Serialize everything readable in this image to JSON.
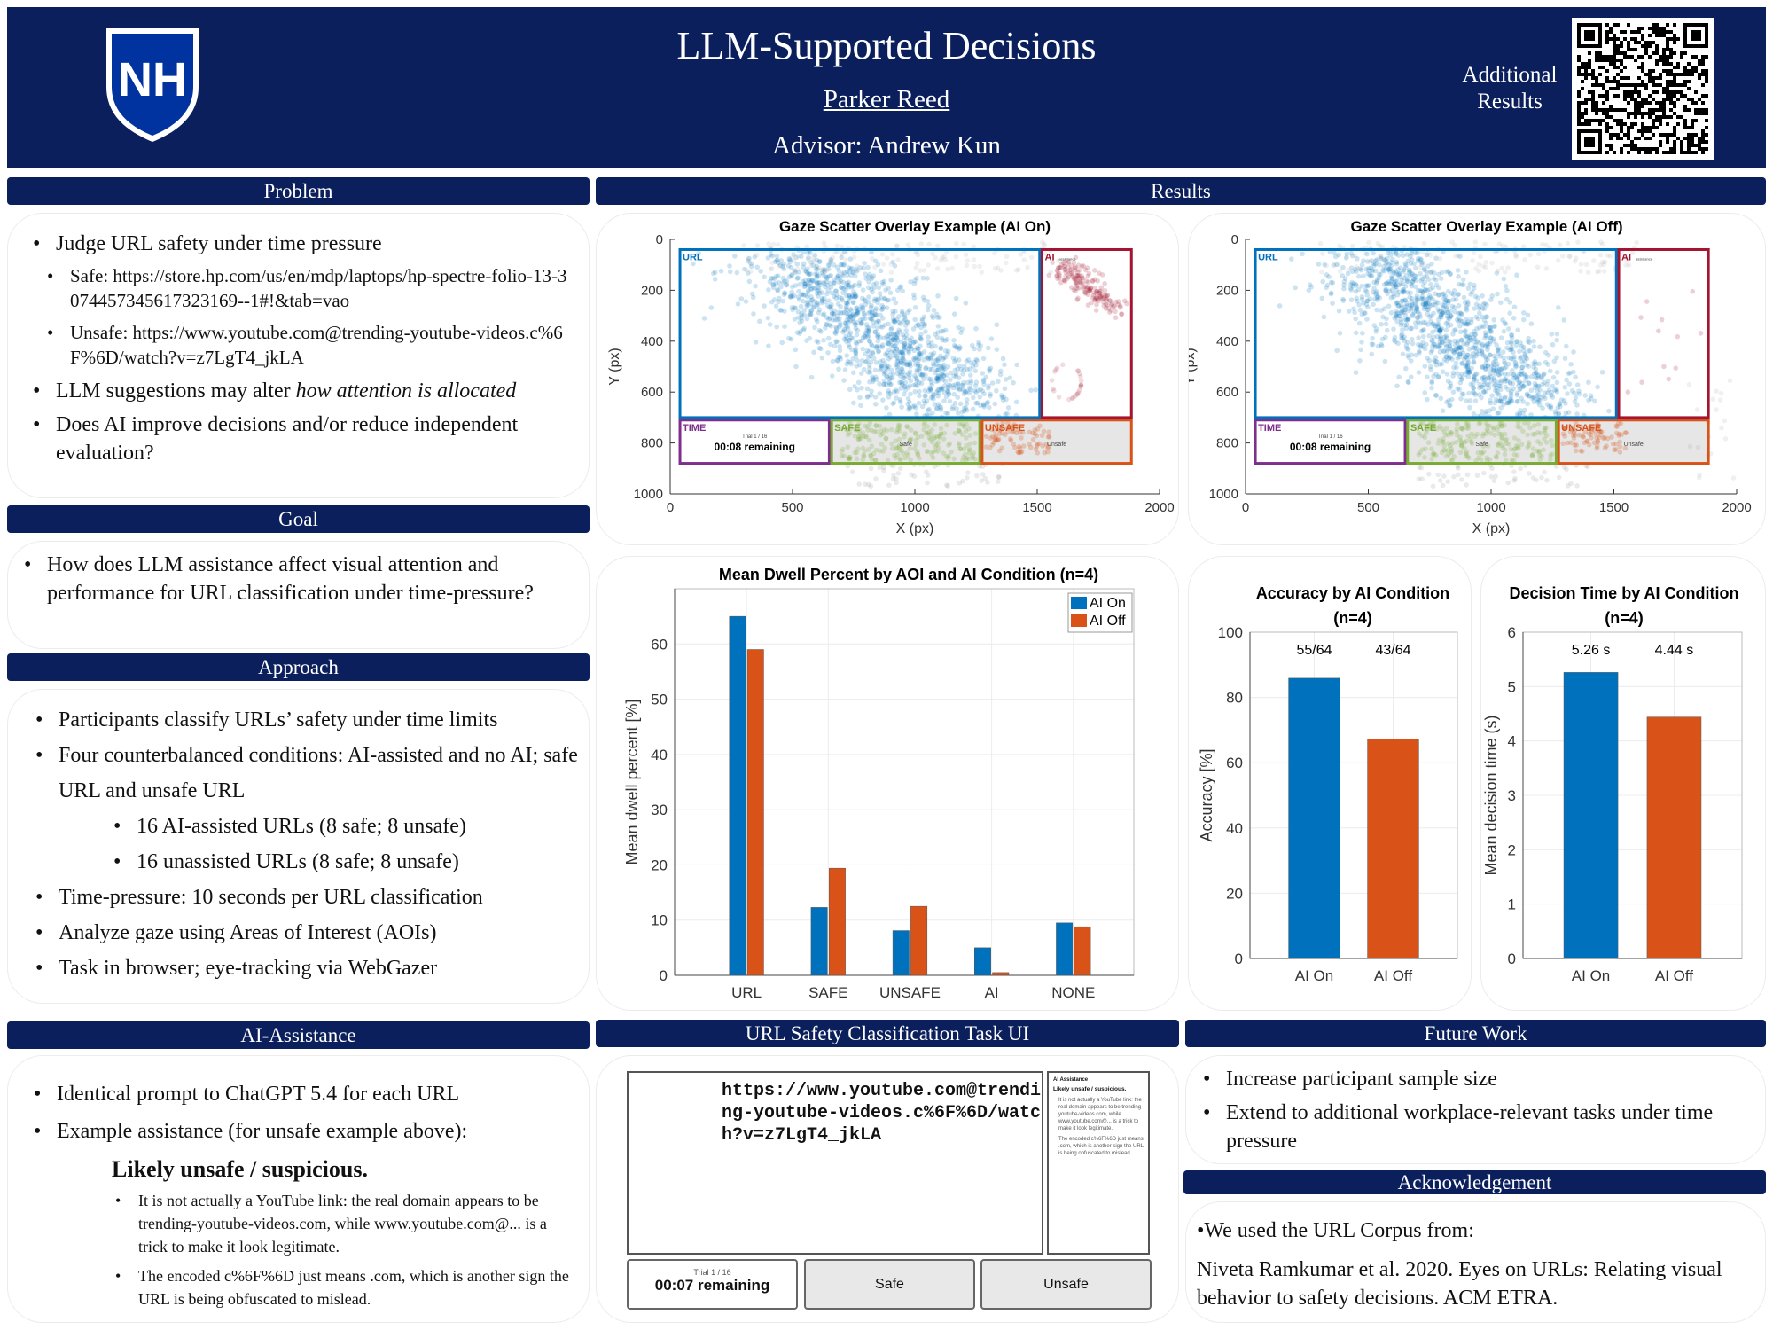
{
  "header": {
    "title": "LLM-Supported Decisions",
    "author": "Parker Reed",
    "advisor": "Advisor: Andrew Kun",
    "additional_results": [
      "Additional",
      "Results"
    ],
    "logo_text": "NH",
    "brand_color": "#0b1f5c"
  },
  "problem": {
    "heading": "Problem",
    "b1": "Judge URL safety under time pressure",
    "b1a": "Safe: https://store.hp.com/us/en/mdp/laptops/hp-spectre-folio-13-3074457345617323169--1#!&tab=vao",
    "b1b": "Unsafe: https://www.youtube.com@trending-youtube-videos.c%6F%6D/watch?v=z7LgT4_jkLA",
    "b2_pre": "LLM suggestions may alter ",
    "b2_em": "how attention is allocated",
    "b3": "Does AI improve decisions and/or reduce independent evaluation?"
  },
  "goal": {
    "heading": "Goal",
    "b1": "How does LLM assistance affect visual attention and performance for URL classification under time-pressure?"
  },
  "approach": {
    "heading": "Approach",
    "items": [
      "Participants classify URLs’ safety under time limits",
      "Four counterbalanced conditions: AI-assisted and no AI; safe URL and unsafe URL",
      "16 AI-assisted URLs (8 safe; 8 unsafe)",
      "16 unassisted URLs (8 safe; 8 unsafe)",
      "Time-pressure: 10 seconds per URL classification",
      "Analyze gaze using Areas of Interest (AOIs)",
      "Task in browser; eye-tracking via WebGazer"
    ]
  },
  "ai_assistance": {
    "heading": "AI-Assistance",
    "b1": "Identical prompt to ChatGPT 5.4 for each URL",
    "b2": "Example assistance (for unsafe example above):",
    "verdict": "Likely unsafe / suspicious.",
    "reasons": [
      "It is not actually a YouTube link: the real domain appears to be trending-youtube-videos.com, while www.youtube.com@... is a trick to make it look legitimate.",
      "The encoded c%6F%6D just means .com, which is another sign the URL is being obfuscated to mislead."
    ]
  },
  "results": {
    "heading": "Results"
  },
  "task_ui": {
    "heading": "URL Safety Classification Task UI",
    "url": "https://www.youtube.com@trending-youtube-videos.c%6F%6D/watch?v=z7LgT4_jkLA",
    "ai_title": "AI Assistance",
    "ai_verdict": "Likely unsafe / suspicious.",
    "ai_reasons": [
      "It is not actually a YouTube link: the real domain appears to be trending-youtube-videos.com, while www.youtube.com@... is a trick to make it look legitimate.",
      "The encoded c%6F%6D just means .com, which is another sign the URL is being obfuscated to mislead."
    ],
    "trial": "Trial 1 / 16",
    "remaining": "00:07 remaining",
    "safe_button": "Safe",
    "unsafe_button": "Unsafe"
  },
  "future_work": {
    "heading": "Future Work",
    "items": [
      "Increase participant sample size",
      "Extend to additional workplace-relevant tasks under time pressure"
    ]
  },
  "acknowledgement": {
    "heading": "Acknowledgement",
    "line1": "•We used the URL Corpus from:",
    "citation": "Niveta Ramkumar et al. 2020. Eyes on URLs: Relating visual behavior to safety decisions. ACM ETRA."
  },
  "colors": {
    "ai_on": "#0072bd",
    "ai_off": "#d95319",
    "url": "#0072bd",
    "ai": "#a2142f",
    "time": "#7e2f8e",
    "safe": "#77ac30",
    "unsafe": "#d95319"
  },
  "chart_data": [
    {
      "type": "scatter",
      "title": "Gaze Scatter Overlay Example (AI On)",
      "xlabel": "X (px)",
      "ylabel": "Y (px)",
      "xlim": [
        0,
        2000
      ],
      "ylim": [
        0,
        1000
      ],
      "y_reversed": true,
      "xticks": [
        0,
        500,
        1000,
        1500,
        2000
      ],
      "yticks": [
        0,
        200,
        400,
        600,
        800,
        1000
      ],
      "aois": [
        {
          "label": "URL",
          "x": [
            40,
            1510
          ],
          "y": [
            40,
            700
          ],
          "color": "#0072bd"
        },
        {
          "label": "AI",
          "sub": "assistance",
          "x": [
            1520,
            1885
          ],
          "y": [
            40,
            700
          ],
          "color": "#a2142f"
        },
        {
          "label": "TIME",
          "x": [
            40,
            650
          ],
          "y": [
            710,
            880
          ],
          "color": "#7e2f8e",
          "inner": [
            "Trial 1 / 16",
            "00:08 remaining"
          ]
        },
        {
          "label": "SAFE",
          "x": [
            660,
            1265
          ],
          "y": [
            710,
            880
          ],
          "color": "#77ac30",
          "inner": [
            "Safe"
          ]
        },
        {
          "label": "UNSAFE",
          "x": [
            1275,
            1885
          ],
          "y": [
            710,
            880
          ],
          "color": "#d95319",
          "inner": [
            "Unsafe"
          ]
        }
      ],
      "ai_gaze": true
    },
    {
      "type": "scatter",
      "title": "Gaze Scatter Overlay Example (AI Off)",
      "xlabel": "X (px)",
      "ylabel": "Y (px)",
      "xlim": [
        0,
        2000
      ],
      "ylim": [
        0,
        1000
      ],
      "y_reversed": true,
      "xticks": [
        0,
        500,
        1000,
        1500,
        2000
      ],
      "yticks": [
        0,
        200,
        400,
        600,
        800,
        1000
      ],
      "aois": [
        {
          "label": "URL",
          "x": [
            40,
            1510
          ],
          "y": [
            40,
            700
          ],
          "color": "#0072bd"
        },
        {
          "label": "AI",
          "sub": "assistance",
          "x": [
            1520,
            1885
          ],
          "y": [
            40,
            700
          ],
          "color": "#a2142f"
        },
        {
          "label": "TIME",
          "x": [
            40,
            650
          ],
          "y": [
            710,
            880
          ],
          "color": "#7e2f8e",
          "inner": [
            "Trial 1 / 16",
            "00:08 remaining"
          ]
        },
        {
          "label": "SAFE",
          "x": [
            660,
            1265
          ],
          "y": [
            710,
            880
          ],
          "color": "#77ac30",
          "inner": [
            "Safe"
          ]
        },
        {
          "label": "UNSAFE",
          "x": [
            1275,
            1885
          ],
          "y": [
            710,
            880
          ],
          "color": "#d95319",
          "inner": [
            "Unsafe"
          ]
        }
      ],
      "ai_gaze": false
    },
    {
      "type": "bar",
      "title": "Mean Dwell Percent by AOI and AI Condition (n=4)",
      "categories": [
        "URL",
        "SAFE",
        "UNSAFE",
        "AI",
        "NONE"
      ],
      "series": [
        {
          "name": "AI On",
          "values": [
            65.0,
            12.3,
            8.1,
            5.0,
            9.5
          ]
        },
        {
          "name": "AI Off",
          "values": [
            59.0,
            19.4,
            12.5,
            0.5,
            8.8
          ]
        }
      ],
      "xlabel": "",
      "ylabel": "Mean dwell percent [%]",
      "ylim": [
        0,
        70
      ],
      "yticks": [
        0,
        10,
        20,
        30,
        40,
        50,
        60
      ],
      "grid": true,
      "legend": "top-right"
    },
    {
      "type": "bar",
      "title": "Accuracy by AI Condition",
      "title2": "(n=4)",
      "categories": [
        "AI On",
        "AI Off"
      ],
      "values": [
        85.9,
        67.2
      ],
      "labels": [
        "55/64",
        "43/64"
      ],
      "xlabel": "",
      "ylabel": "Accuracy [%]",
      "ylim": [
        0,
        100
      ],
      "yticks": [
        0,
        20,
        40,
        60,
        80,
        100
      ],
      "grid": true
    },
    {
      "type": "bar",
      "title": "Decision Time by AI Condition",
      "title2": "(n=4)",
      "categories": [
        "AI On",
        "AI Off"
      ],
      "values": [
        5.26,
        4.44
      ],
      "labels": [
        "5.26 s",
        "4.44 s"
      ],
      "xlabel": "",
      "ylabel": "Mean decision time (s)",
      "ylim": [
        0,
        6
      ],
      "yticks": [
        0,
        1,
        2,
        3,
        4,
        5,
        6
      ],
      "grid": true
    }
  ]
}
